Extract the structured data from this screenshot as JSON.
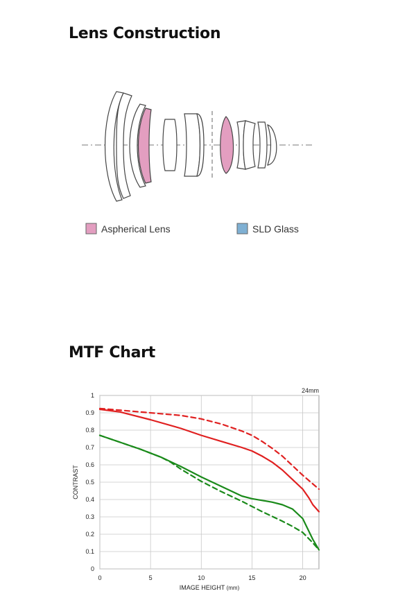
{
  "sections": {
    "lens_title": "Lens Construction",
    "mtf_title": "MTF Chart"
  },
  "lens_legend": [
    {
      "label": "Aspherical Lens",
      "color": "#e39ec0"
    },
    {
      "label": "SLD Glass",
      "color": "#7fb0d3"
    }
  ],
  "chart_data": {
    "type": "line",
    "annotation": "24mm",
    "xlabel": "IMAGE HEIGHT",
    "xlabel_unit": "(mm)",
    "ylabel": "CONTRAST",
    "xlim": [
      0,
      21.6
    ],
    "ylim": [
      0,
      1
    ],
    "xticks": [
      0,
      5,
      10,
      15,
      20
    ],
    "yticks": [
      0,
      0.1,
      0.2,
      0.3,
      0.4,
      0.5,
      0.6,
      0.7,
      0.8,
      0.9,
      1
    ],
    "ytick_labels": [
      "0",
      "0.1",
      "0.2",
      "0.3",
      "0.4",
      "0.5",
      "0.6",
      "0.7",
      "0.8",
      "0.9",
      "1"
    ],
    "grid": true,
    "series": [
      {
        "color": "#e02020",
        "dash": false,
        "points": [
          [
            0,
            0.92
          ],
          [
            2,
            0.905
          ],
          [
            5,
            0.86
          ],
          [
            8,
            0.81
          ],
          [
            10,
            0.77
          ],
          [
            12,
            0.735
          ],
          [
            14,
            0.7
          ],
          [
            15,
            0.68
          ],
          [
            16,
            0.65
          ],
          [
            17,
            0.615
          ],
          [
            18,
            0.57
          ],
          [
            19,
            0.515
          ],
          [
            20,
            0.46
          ],
          [
            20.6,
            0.41
          ],
          [
            21,
            0.37
          ],
          [
            21.6,
            0.33
          ]
        ]
      },
      {
        "color": "#e02020",
        "dash": true,
        "points": [
          [
            0,
            0.925
          ],
          [
            3,
            0.91
          ],
          [
            6,
            0.895
          ],
          [
            8,
            0.885
          ],
          [
            10,
            0.865
          ],
          [
            12,
            0.835
          ],
          [
            14,
            0.795
          ],
          [
            15,
            0.77
          ],
          [
            16,
            0.735
          ],
          [
            17,
            0.695
          ],
          [
            18,
            0.65
          ],
          [
            19,
            0.595
          ],
          [
            20,
            0.54
          ],
          [
            21,
            0.49
          ],
          [
            21.6,
            0.46
          ]
        ]
      },
      {
        "color": "#1a8a1a",
        "dash": false,
        "points": [
          [
            0,
            0.77
          ],
          [
            2,
            0.73
          ],
          [
            4,
            0.69
          ],
          [
            6,
            0.645
          ],
          [
            8,
            0.59
          ],
          [
            10,
            0.53
          ],
          [
            12,
            0.475
          ],
          [
            14,
            0.42
          ],
          [
            15,
            0.405
          ],
          [
            16,
            0.395
          ],
          [
            17,
            0.385
          ],
          [
            18,
            0.37
          ],
          [
            19,
            0.345
          ],
          [
            20,
            0.29
          ],
          [
            21,
            0.17
          ],
          [
            21.6,
            0.11
          ]
        ]
      },
      {
        "color": "#1a8a1a",
        "dash": true,
        "points": [
          [
            0,
            0.77
          ],
          [
            2,
            0.73
          ],
          [
            4,
            0.69
          ],
          [
            6,
            0.645
          ],
          [
            7,
            0.615
          ],
          [
            8,
            0.575
          ],
          [
            10,
            0.505
          ],
          [
            12,
            0.445
          ],
          [
            14,
            0.39
          ],
          [
            16,
            0.33
          ],
          [
            18,
            0.275
          ],
          [
            19,
            0.245
          ],
          [
            20,
            0.21
          ],
          [
            21,
            0.15
          ],
          [
            21.6,
            0.11
          ]
        ]
      }
    ]
  }
}
